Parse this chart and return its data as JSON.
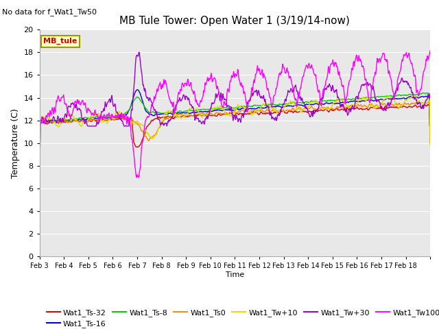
{
  "title": "MB Tule Tower: Open Water 1 (3/19/14-now)",
  "subtitle": "No data for f_Wat1_Tw50",
  "xlabel": "Time",
  "ylabel": "Temperature (C)",
  "ylim": [
    0,
    20
  ],
  "yticks": [
    0,
    2,
    4,
    6,
    8,
    10,
    12,
    14,
    16,
    18,
    20
  ],
  "bg_color": "#e8e8e8",
  "fig_color": "#ffffff",
  "legend_box_label": "MB_tule",
  "legend_box_color": "#ffffcc",
  "legend_box_edge": "#999900",
  "legend_box_text": "#cc0000",
  "series": [
    {
      "name": "Wat1_Ts-32",
      "color": "#dd0000"
    },
    {
      "name": "Wat1_Ts-16",
      "color": "#0000cc"
    },
    {
      "name": "Wat1_Ts-8",
      "color": "#00cc00"
    },
    {
      "name": "Wat1_Ts0",
      "color": "#ff8800"
    },
    {
      "name": "Wat1_Tw+10",
      "color": "#dddd00"
    },
    {
      "name": "Wat1_Tw+30",
      "color": "#9900cc"
    },
    {
      "name": "Wat1_Tw100",
      "color": "#ff00ff"
    }
  ],
  "xtick_labels": [
    "Feb 3",
    "Feb 4",
    "Feb 5",
    "Feb 6",
    "Feb 7",
    "Feb 8",
    "Feb 9",
    "Feb 10",
    "Feb 11",
    "Feb 12",
    "Feb 13",
    "Feb 14",
    "Feb 15",
    "Feb 16",
    "Feb 17",
    "Feb 18"
  ],
  "n_days": 16,
  "pts_per_day": 48,
  "seed": 42
}
